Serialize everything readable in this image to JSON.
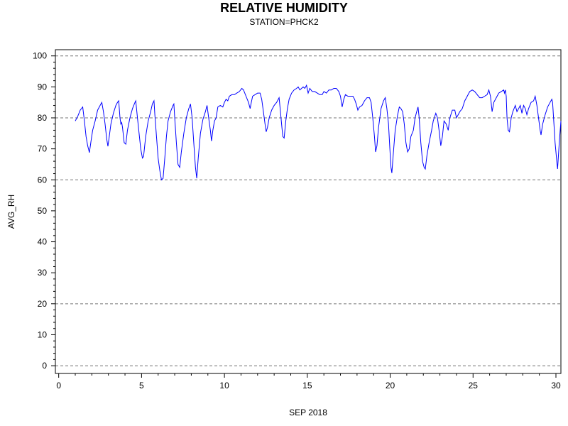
{
  "chart_data": {
    "type": "line",
    "title": "RELATIVE HUMIDITY",
    "subtitle": "STATION=PHCK2",
    "xlabel": "SEP 2018",
    "ylabel": "AVG_RH",
    "xlim": [
      -0.2,
      30.3
    ],
    "ylim": [
      -2.5,
      102
    ],
    "x_ticks": [
      0,
      5,
      10,
      15,
      20,
      25,
      30
    ],
    "y_ticks": [
      0,
      10,
      20,
      30,
      40,
      50,
      60,
      70,
      80,
      90,
      100
    ],
    "grid": "horizontal dashed at 0, 20, 60, 80, 100",
    "line_color": "#0000ff",
    "series": [
      {
        "name": "",
        "points": [
          [
            1.0,
            79
          ],
          [
            1.15,
            80.5
          ],
          [
            1.3,
            82.5
          ],
          [
            1.45,
            83.5
          ],
          [
            1.55,
            79
          ],
          [
            1.65,
            74
          ],
          [
            1.75,
            71
          ],
          [
            1.85,
            68.8
          ],
          [
            1.95,
            72.5
          ],
          [
            2.05,
            76
          ],
          [
            2.2,
            79
          ],
          [
            2.35,
            82.5
          ],
          [
            2.5,
            84
          ],
          [
            2.6,
            85
          ],
          [
            2.7,
            82
          ],
          [
            2.8,
            78
          ],
          [
            2.9,
            73
          ],
          [
            2.97,
            70.8
          ],
          [
            3.05,
            74
          ],
          [
            3.15,
            78
          ],
          [
            3.3,
            81.5
          ],
          [
            3.45,
            84
          ],
          [
            3.55,
            85
          ],
          [
            3.62,
            85.5
          ],
          [
            3.7,
            80
          ],
          [
            3.75,
            78
          ],
          [
            3.8,
            78.5
          ],
          [
            3.85,
            77
          ],
          [
            3.95,
            72
          ],
          [
            4.05,
            71.5
          ],
          [
            4.15,
            76
          ],
          [
            4.3,
            80
          ],
          [
            4.45,
            83
          ],
          [
            4.6,
            85
          ],
          [
            4.65,
            85.5
          ],
          [
            4.75,
            80
          ],
          [
            4.85,
            75
          ],
          [
            4.95,
            70
          ],
          [
            5.05,
            67
          ],
          [
            5.12,
            67.5
          ],
          [
            5.25,
            74
          ],
          [
            5.4,
            79
          ],
          [
            5.55,
            82
          ],
          [
            5.65,
            84.5
          ],
          [
            5.75,
            85.5
          ],
          [
            5.8,
            81
          ],
          [
            5.9,
            74
          ],
          [
            6.0,
            67
          ],
          [
            6.1,
            63
          ],
          [
            6.2,
            60
          ],
          [
            6.3,
            60.5
          ],
          [
            6.4,
            67
          ],
          [
            6.5,
            74
          ],
          [
            6.6,
            79
          ],
          [
            6.75,
            82
          ],
          [
            6.9,
            84
          ],
          [
            6.95,
            84.5
          ],
          [
            7.0,
            80
          ],
          [
            7.1,
            72
          ],
          [
            7.2,
            65
          ],
          [
            7.3,
            64
          ],
          [
            7.4,
            69
          ],
          [
            7.55,
            75
          ],
          [
            7.7,
            80
          ],
          [
            7.85,
            83
          ],
          [
            7.95,
            84.5
          ],
          [
            8.05,
            80
          ],
          [
            8.15,
            72
          ],
          [
            8.25,
            64
          ],
          [
            8.33,
            60.5
          ],
          [
            8.42,
            67
          ],
          [
            8.55,
            75
          ],
          [
            8.7,
            79.5
          ],
          [
            8.85,
            82
          ],
          [
            8.95,
            84
          ],
          [
            9.05,
            80
          ],
          [
            9.15,
            76
          ],
          [
            9.22,
            72.5
          ],
          [
            9.3,
            76
          ],
          [
            9.4,
            79
          ],
          [
            9.5,
            80
          ],
          [
            9.6,
            83.5
          ],
          [
            9.75,
            84
          ],
          [
            9.9,
            83.5
          ],
          [
            10.0,
            85
          ],
          [
            10.1,
            86
          ],
          [
            10.2,
            85.5
          ],
          [
            10.3,
            87
          ],
          [
            10.45,
            87.5
          ],
          [
            10.6,
            87.5
          ],
          [
            10.75,
            88
          ],
          [
            10.9,
            88.5
          ],
          [
            11.05,
            89.5
          ],
          [
            11.15,
            89
          ],
          [
            11.3,
            87
          ],
          [
            11.45,
            85
          ],
          [
            11.55,
            83
          ],
          [
            11.6,
            84.5
          ],
          [
            11.7,
            87
          ],
          [
            11.85,
            87.5
          ],
          [
            12.0,
            88
          ],
          [
            12.15,
            88
          ],
          [
            12.25,
            86
          ],
          [
            12.35,
            82
          ],
          [
            12.45,
            78
          ],
          [
            12.52,
            75.5
          ],
          [
            12.6,
            77
          ],
          [
            12.7,
            80
          ],
          [
            12.85,
            82.5
          ],
          [
            13.0,
            84
          ],
          [
            13.15,
            85
          ],
          [
            13.3,
            86.5
          ],
          [
            13.38,
            82
          ],
          [
            13.45,
            78
          ],
          [
            13.52,
            74
          ],
          [
            13.6,
            73.5
          ],
          [
            13.7,
            79
          ],
          [
            13.8,
            83
          ],
          [
            13.9,
            86
          ],
          [
            14.05,
            88
          ],
          [
            14.2,
            89
          ],
          [
            14.35,
            89.5
          ],
          [
            14.45,
            90
          ],
          [
            14.55,
            89
          ],
          [
            14.65,
            89.5
          ],
          [
            14.75,
            90
          ],
          [
            14.85,
            89.5
          ],
          [
            14.95,
            90.5
          ],
          [
            15.05,
            88
          ],
          [
            15.15,
            89.5
          ],
          [
            15.3,
            88.5
          ],
          [
            15.45,
            88.5
          ],
          [
            15.6,
            88
          ],
          [
            15.75,
            87.5
          ],
          [
            15.9,
            87.5
          ],
          [
            16.0,
            88.5
          ],
          [
            16.15,
            88
          ],
          [
            16.3,
            89
          ],
          [
            16.45,
            89
          ],
          [
            16.6,
            89.5
          ],
          [
            16.75,
            89.5
          ],
          [
            16.9,
            88.5
          ],
          [
            17.0,
            87
          ],
          [
            17.1,
            83.5
          ],
          [
            17.2,
            86
          ],
          [
            17.3,
            87.5
          ],
          [
            17.45,
            87
          ],
          [
            17.6,
            87
          ],
          [
            17.75,
            87
          ],
          [
            17.85,
            86
          ],
          [
            17.95,
            84.5
          ],
          [
            18.05,
            82.5
          ],
          [
            18.15,
            83.5
          ],
          [
            18.3,
            84
          ],
          [
            18.45,
            85.5
          ],
          [
            18.6,
            86.5
          ],
          [
            18.75,
            86.5
          ],
          [
            18.85,
            85
          ],
          [
            18.95,
            80
          ],
          [
            19.05,
            74
          ],
          [
            19.12,
            69
          ],
          [
            19.2,
            71
          ],
          [
            19.3,
            77
          ],
          [
            19.45,
            83
          ],
          [
            19.6,
            85.5
          ],
          [
            19.7,
            86.5
          ],
          [
            19.8,
            83
          ],
          [
            19.9,
            78
          ],
          [
            19.98,
            70
          ],
          [
            20.05,
            64
          ],
          [
            20.1,
            62.2
          ],
          [
            20.18,
            68
          ],
          [
            20.3,
            76
          ],
          [
            20.45,
            81
          ],
          [
            20.55,
            83.5
          ],
          [
            20.65,
            83
          ],
          [
            20.75,
            82
          ],
          [
            20.85,
            78
          ],
          [
            20.95,
            72
          ],
          [
            21.05,
            69
          ],
          [
            21.15,
            70
          ],
          [
            21.25,
            74
          ],
          [
            21.4,
            76
          ],
          [
            21.5,
            80
          ],
          [
            21.6,
            82
          ],
          [
            21.68,
            83.5
          ],
          [
            21.75,
            80
          ],
          [
            21.85,
            72
          ],
          [
            21.95,
            66
          ],
          [
            22.05,
            64
          ],
          [
            22.12,
            63.5
          ],
          [
            22.22,
            68
          ],
          [
            22.35,
            72
          ],
          [
            22.5,
            76
          ],
          [
            22.6,
            79
          ],
          [
            22.75,
            81.5
          ],
          [
            22.85,
            80
          ],
          [
            22.95,
            76
          ],
          [
            23.05,
            71
          ],
          [
            23.15,
            74
          ],
          [
            23.25,
            79
          ],
          [
            23.38,
            78
          ],
          [
            23.5,
            76
          ],
          [
            23.6,
            80
          ],
          [
            23.75,
            82.5
          ],
          [
            23.9,
            82.5
          ],
          [
            24.0,
            80
          ],
          [
            24.1,
            81
          ],
          [
            24.2,
            82
          ],
          [
            24.35,
            83
          ],
          [
            24.5,
            85.5
          ],
          [
            24.65,
            87
          ],
          [
            24.8,
            88.5
          ],
          [
            24.95,
            89
          ],
          [
            25.1,
            88.5
          ],
          [
            25.25,
            87.5
          ],
          [
            25.4,
            86.5
          ],
          [
            25.55,
            86.5
          ],
          [
            25.7,
            87
          ],
          [
            25.85,
            87.5
          ],
          [
            25.95,
            89
          ],
          [
            26.05,
            87
          ],
          [
            26.15,
            82
          ],
          [
            26.25,
            85
          ],
          [
            26.4,
            86.5
          ],
          [
            26.55,
            88
          ],
          [
            26.7,
            88.5
          ],
          [
            26.85,
            89
          ],
          [
            26.9,
            88
          ],
          [
            26.95,
            89
          ],
          [
            27.0,
            87
          ],
          [
            27.05,
            80
          ],
          [
            27.12,
            76
          ],
          [
            27.2,
            75.5
          ],
          [
            27.3,
            80
          ],
          [
            27.4,
            82
          ],
          [
            27.55,
            84
          ],
          [
            27.65,
            82
          ],
          [
            27.75,
            83
          ],
          [
            27.85,
            84
          ],
          [
            27.95,
            81.5
          ],
          [
            28.05,
            84
          ],
          [
            28.15,
            83
          ],
          [
            28.25,
            81
          ],
          [
            28.35,
            83
          ],
          [
            28.5,
            85
          ],
          [
            28.65,
            85.5
          ],
          [
            28.75,
            87
          ],
          [
            28.85,
            84
          ],
          [
            28.95,
            80
          ],
          [
            29.05,
            76
          ],
          [
            29.1,
            74.5
          ],
          [
            29.2,
            78
          ],
          [
            29.35,
            81
          ],
          [
            29.5,
            83.5
          ],
          [
            29.65,
            85
          ],
          [
            29.75,
            86
          ],
          [
            29.8,
            85
          ],
          [
            29.88,
            78
          ],
          [
            29.95,
            72
          ],
          [
            30.05,
            66
          ],
          [
            30.1,
            63.5
          ],
          [
            30.2,
            72
          ],
          [
            30.3,
            79
          ]
        ]
      }
    ]
  }
}
